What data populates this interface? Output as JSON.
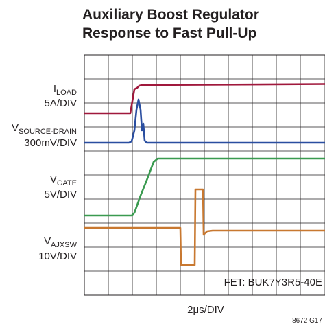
{
  "title": [
    "Auxiliary Boost Regulator",
    "Response to Fast Pull-Up"
  ],
  "labels": [
    {
      "main": "I",
      "sub": "LOAD",
      "scale": "5A/DIV"
    },
    {
      "main": "V",
      "sub": "SOURCE-DRAIN",
      "scale": "300mV/DIV"
    },
    {
      "main": "V",
      "sub": "GATE",
      "scale": "5V/DIV"
    },
    {
      "main": "V",
      "sub": "AJXSW",
      "scale": "10V/DIV"
    }
  ],
  "note": "FET: BUK7Y3R5-40E",
  "x_axis_label": "2μs/DIV",
  "figure_id": "8672 G17"
}
